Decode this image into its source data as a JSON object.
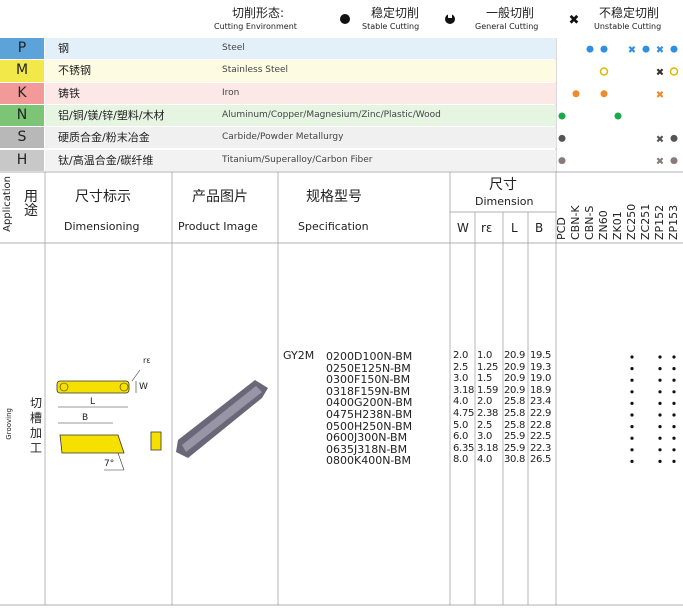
{
  "header": {
    "cutting_env_cn": "切削形态:",
    "cutting_env_en": "Cutting Environment",
    "legend": [
      {
        "cn": "稳定切削",
        "en": "Stable Cutting"
      },
      {
        "cn": "一般切削",
        "en": "General Cutting"
      },
      {
        "cn": "不稳定切削",
        "en": "Unstable Cutting"
      }
    ]
  },
  "materials": [
    {
      "code": "P",
      "cn": "钢",
      "en": "Steel"
    },
    {
      "code": "M",
      "cn": "不锈钢",
      "en": "Stainless Steel"
    },
    {
      "code": "K",
      "cn": "铸铁",
      "en": "Iron"
    },
    {
      "code": "N",
      "cn": "铝/铜/镁/锌/塑料/木材",
      "en": "Aluminum/Copper/Magnesium/Zinc/Plastic/Wood"
    },
    {
      "code": "S",
      "cn": "硬质合金/粉末冶金",
      "en": "Carbide/Powder Metallurgy"
    },
    {
      "code": "H",
      "cn": "钛/高温合金/碳纤维",
      "en": "Titanium/Superalloy/Carbon Fiber"
    }
  ],
  "table": {
    "application_en": "Application",
    "application_cn": "用途",
    "dimensioning_cn": "尺寸标示",
    "dimensioning_en": "Dimensioning",
    "image_cn": "产品图片",
    "image_en": "Product Image",
    "spec_cn": "规格型号",
    "spec_en": "Specification",
    "dimension_cn": "尺寸",
    "dimension_en": "Dimension",
    "dim_columns": [
      "W",
      "rε",
      "L",
      "B"
    ],
    "grades": [
      "PCD",
      "CBN-K",
      "CBN-S",
      "ZN60",
      "ZK01",
      "ZC250",
      "ZC251",
      "ZP152",
      "ZP153"
    ]
  },
  "section": {
    "cn": "切槽加工",
    "en": "Grooving",
    "series": "GY2M",
    "diagram_labels": [
      "rε",
      "W",
      "L",
      "B",
      "7°"
    ],
    "rows": [
      {
        "model": "0200D100N-BM",
        "dims": [
          "2.0",
          "1.0",
          "20.9",
          "19.5"
        ]
      },
      {
        "model": "0250E125N-BM",
        "dims": [
          "2.5",
          "1.25",
          "20.9",
          "19.3"
        ]
      },
      {
        "model": "0300F150N-BM",
        "dims": [
          "3.0",
          "1.5",
          "20.9",
          "19.0"
        ]
      },
      {
        "model": "0318F159N-BM",
        "dims": [
          "3.18",
          "1.59",
          "20.9",
          "18.9"
        ]
      },
      {
        "model": "0400G200N-BM",
        "dims": [
          "4.0",
          "2.0",
          "25.8",
          "23.4"
        ]
      },
      {
        "model": "0475H238N-BM",
        "dims": [
          "4.75",
          "2.38",
          "25.8",
          "22.9"
        ]
      },
      {
        "model": "0500H250N-BM",
        "dims": [
          "5.0",
          "2.5",
          "25.8",
          "22.8"
        ]
      },
      {
        "model": "0600J300N-BM",
        "dims": [
          "6.0",
          "3.0",
          "25.9",
          "22.5"
        ]
      },
      {
        "model": "0635J318N-BM",
        "dims": [
          "6.35",
          "3.18",
          "25.9",
          "22.3"
        ]
      },
      {
        "model": "0800K400N-BM",
        "dims": [
          "8.0",
          "4.0",
          "30.8",
          "26.5"
        ]
      }
    ]
  }
}
